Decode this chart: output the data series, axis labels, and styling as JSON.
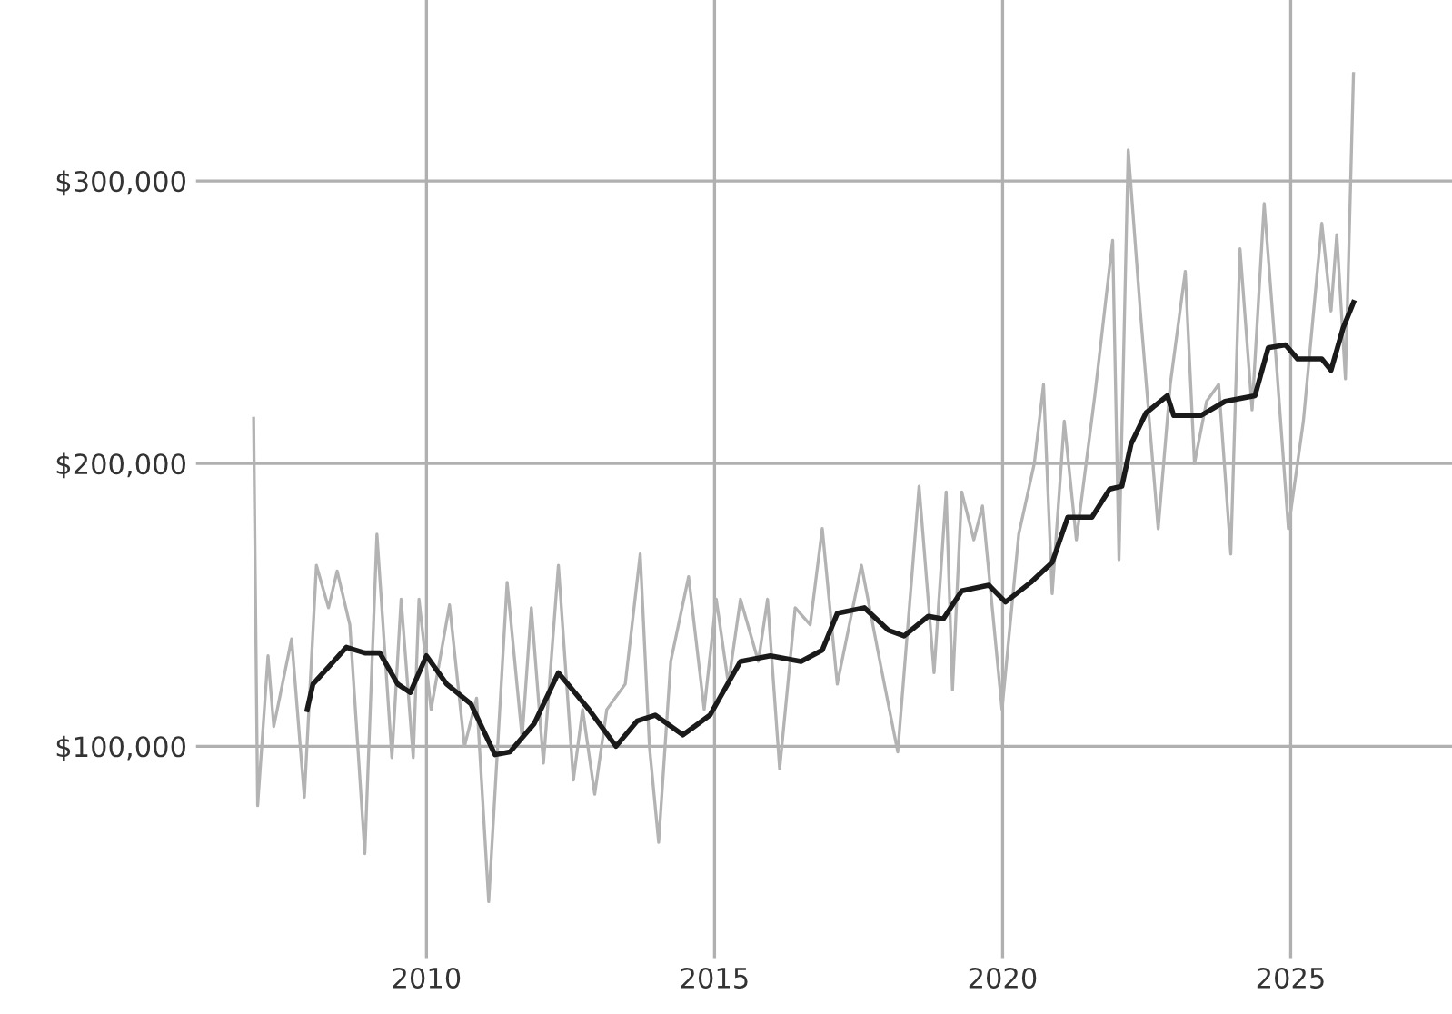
{
  "chart_data": {
    "type": "line",
    "series": [
      {
        "color": "#b3b3b3",
        "x": [
          2007.0,
          2007.07,
          2007.25,
          2007.35,
          2007.66,
          2007.88,
          2008.09,
          2008.3,
          2008.45,
          2008.67,
          2008.93,
          2009.14,
          2009.4,
          2009.56,
          2009.77,
          2009.87,
          2010.08,
          2010.4,
          2010.66,
          2010.87,
          2011.08,
          2011.4,
          2011.66,
          2011.82,
          2012.03,
          2012.29,
          2012.55,
          2012.71,
          2012.92,
          2013.13,
          2013.45,
          2013.71,
          2013.87,
          2014.03,
          2014.24,
          2014.55,
          2014.82,
          2015.03,
          2015.24,
          2015.45,
          2015.76,
          2015.92,
          2016.13,
          2016.4,
          2016.66,
          2016.87,
          2017.13,
          2017.34,
          2017.55,
          2017.87,
          2018.18,
          2018.55,
          2018.81,
          2019.02,
          2019.13,
          2019.29,
          2019.5,
          2019.65,
          2019.99,
          2020.28,
          2020.55,
          2020.71,
          2020.86,
          2021.07,
          2021.28,
          2021.6,
          2021.91,
          2022.02,
          2022.18,
          2022.39,
          2022.7,
          2022.91,
          2023.17,
          2023.33,
          2023.54,
          2023.75,
          2023.96,
          2024.12,
          2024.33,
          2024.54,
          2024.75,
          2024.96,
          2025.22,
          2025.54,
          2025.7,
          2025.8,
          2025.95,
          2026.09
        ],
        "values": [
          216000,
          79000,
          132000,
          107000,
          138000,
          82000,
          164000,
          149000,
          162000,
          143000,
          62000,
          175000,
          96000,
          152000,
          96000,
          152000,
          113000,
          150000,
          100000,
          117000,
          45000,
          158000,
          103000,
          149000,
          94000,
          164000,
          88000,
          113000,
          83000,
          113000,
          122000,
          168000,
          100000,
          66000,
          130000,
          160000,
          113000,
          152000,
          122000,
          152000,
          130000,
          152000,
          92000,
          149000,
          143000,
          177000,
          122000,
          143000,
          164000,
          130000,
          98000,
          192000,
          126000,
          190000,
          120000,
          190000,
          173000,
          185000,
          113000,
          175000,
          200000,
          228000,
          154000,
          215000,
          173000,
          224000,
          279000,
          166000,
          311000,
          254000,
          177000,
          228000,
          268000,
          200000,
          222000,
          228000,
          168000,
          276000,
          219000,
          292000,
          236000,
          177000,
          215000,
          285000,
          254000,
          281000,
          230000,
          338000
        ]
      },
      {
        "color": "#1a1a1a",
        "x": [
          2007.93,
          2008.03,
          2008.3,
          2008.61,
          2008.93,
          2009.19,
          2009.5,
          2009.72,
          2010.0,
          2010.35,
          2010.77,
          2011.19,
          2011.45,
          2011.87,
          2012.29,
          2012.82,
          2013.29,
          2013.66,
          2013.97,
          2014.45,
          2014.92,
          2015.45,
          2015.97,
          2016.5,
          2016.87,
          2017.13,
          2017.6,
          2018.02,
          2018.29,
          2018.71,
          2018.97,
          2019.29,
          2019.76,
          2020.05,
          2020.49,
          2020.86,
          2021.13,
          2021.55,
          2021.86,
          2022.07,
          2022.23,
          2022.49,
          2022.86,
          2022.97,
          2023.44,
          2023.86,
          2024.38,
          2024.61,
          2024.91,
          2025.12,
          2025.54,
          2025.7,
          2025.91,
          2026.09
        ],
        "values": [
          113000,
          122000,
          128000,
          135000,
          133000,
          133000,
          122000,
          119000,
          132000,
          122000,
          115000,
          97000,
          98000,
          108000,
          126000,
          113000,
          100000,
          109000,
          111000,
          104000,
          111000,
          130000,
          132000,
          130000,
          134000,
          147000,
          149000,
          141000,
          139000,
          146000,
          145000,
          155000,
          157000,
          151000,
          158000,
          165000,
          181000,
          181000,
          191000,
          192000,
          207000,
          218000,
          224000,
          217000,
          217000,
          222000,
          224000,
          241000,
          242000,
          237000,
          237000,
          233000,
          248000,
          257000
        ]
      }
    ],
    "xlim": [
      2006.0,
      2027.8
    ],
    "ylim": [
      25000,
      364000
    ],
    "xticks": [
      2010,
      2015,
      2020,
      2025
    ],
    "yticks": [
      {
        "value": 100000,
        "label": "$100,000"
      },
      {
        "value": 200000,
        "label": "$200,000"
      },
      {
        "value": 300000,
        "label": "$300,000"
      }
    ],
    "grid": true
  }
}
